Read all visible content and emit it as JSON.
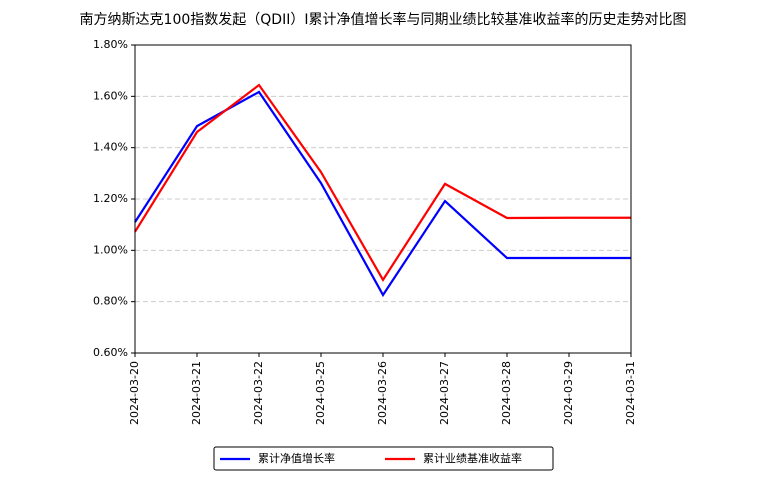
{
  "chart_data": {
    "type": "line",
    "title": "南方纳斯达克100指数发起（QDII）I累计净值增长率与同期业绩比较基准收益率的历史走势对比图",
    "categories": [
      "2024-03-20",
      "2024-03-21",
      "2024-03-22",
      "2024-03-25",
      "2024-03-26",
      "2024-03-27",
      "2024-03-28",
      "2024-03-29",
      "2024-03-31"
    ],
    "series": [
      {
        "name": "累计净值增长率",
        "color": "#0000ff",
        "values": [
          1.11,
          1.484,
          1.617,
          1.262,
          0.826,
          1.192,
          0.97,
          0.97,
          0.97
        ]
      },
      {
        "name": "累计业绩基准收益率",
        "color": "#ff0000",
        "values": [
          1.072,
          1.461,
          1.644,
          1.305,
          0.885,
          1.259,
          1.126,
          1.127,
          1.127
        ]
      }
    ],
    "ylim": [
      0.6,
      1.8
    ],
    "yticks": [
      {
        "value": 0.6,
        "label": "0.60%"
      },
      {
        "value": 0.8,
        "label": "0.80%"
      },
      {
        "value": 1.0,
        "label": "1.00%"
      },
      {
        "value": 1.2,
        "label": "1.20%"
      },
      {
        "value": 1.4,
        "label": "1.40%"
      },
      {
        "value": 1.6,
        "label": "1.60%"
      },
      {
        "value": 1.8,
        "label": "1.80%"
      }
    ],
    "grid": true,
    "legend": "bottom"
  }
}
